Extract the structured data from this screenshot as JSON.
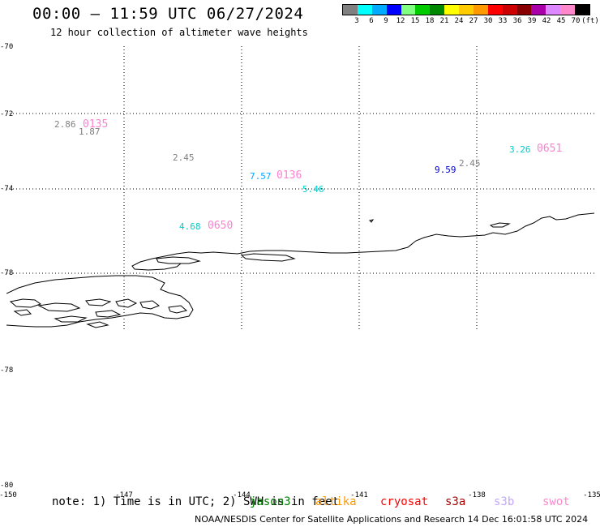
{
  "header": {
    "title": "00:00 – 11:59 UTC 06/27/2024",
    "subtitle": "12 hour collection of altimeter wave heights"
  },
  "color_scale": {
    "colors": [
      "#808080",
      "#00ffff",
      "#00aaff",
      "#0000ff",
      "#80ff80",
      "#00cc00",
      "#008800",
      "#ffff00",
      "#ffcc00",
      "#ff9900",
      "#ff0000",
      "#cc0000",
      "#880000",
      "#aa00aa",
      "#dd88ff",
      "#ff88cc",
      "#000000"
    ],
    "tick_labels": [
      "3",
      "6",
      "9",
      "12",
      "15",
      "18",
      "21",
      "24",
      "27",
      "30",
      "33",
      "36",
      "39",
      "42",
      "45",
      "70",
      "(ft)"
    ]
  },
  "axes": {
    "lat_labels": [
      "-70",
      "-72",
      "-74",
      "-76",
      "-78",
      "-78",
      "-80"
    ],
    "lon_labels": [
      "-150",
      "-147",
      "-144",
      "-141",
      "-138",
      "-135"
    ]
  },
  "observations": [
    {
      "value": "2.86",
      "color": "#808080"
    },
    {
      "value": "1.87",
      "color": "#808080"
    },
    {
      "value": "2.45",
      "color": "#808080"
    },
    {
      "value": "7.57",
      "color": "#00aaff"
    },
    {
      "value": "5.46",
      "color": "#00cccc"
    },
    {
      "value": "4.68",
      "color": "#00cccc"
    },
    {
      "value": "9.59",
      "color": "#0000cc"
    },
    {
      "value": "2.45",
      "color": "#808080"
    },
    {
      "value": "3.26",
      "color": "#00cccc"
    }
  ],
  "pass_times": [
    "0135",
    "0136",
    "0650",
    "0651"
  ],
  "note": "note: 1) Time is in UTC; 2) SWH is in feet",
  "legend": [
    {
      "name": "jason3",
      "color": "#008000"
    },
    {
      "name": "altika",
      "color": "#ff9900"
    },
    {
      "name": "cryosat",
      "color": "#ff0000"
    },
    {
      "name": "s3a",
      "color": "#aa0000"
    },
    {
      "name": "s3b",
      "color": "#c0a8ff"
    },
    {
      "name": "swot",
      "color": "#ff88cc"
    }
  ],
  "footer": "NOAA/NESDIS Center for Satellite Applications and Research    14 Dec 16:01:58 UTC 2024"
}
